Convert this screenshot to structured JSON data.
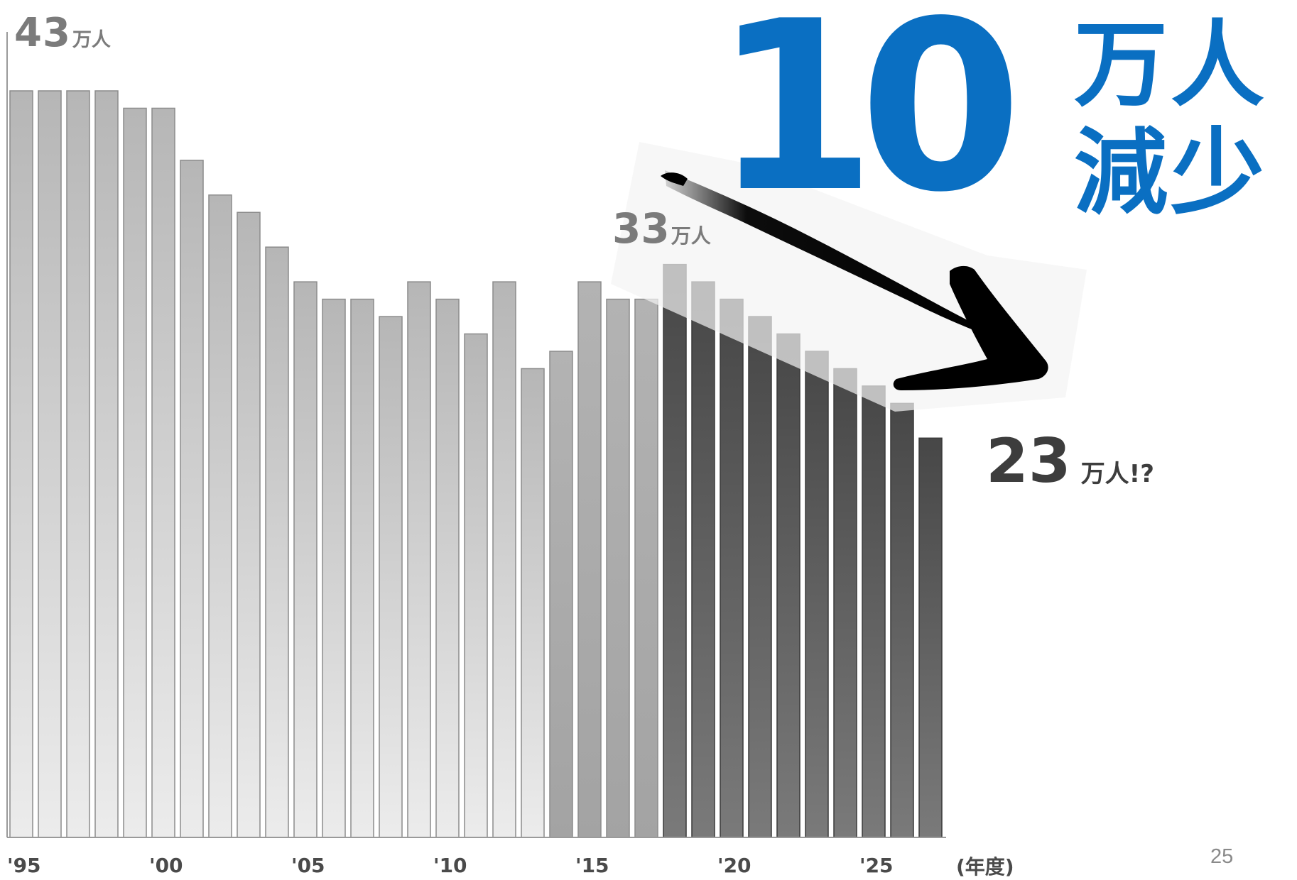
{
  "chart_data": {
    "type": "bar",
    "categories": [
      "'95",
      "'96",
      "'97",
      "'98",
      "'99",
      "'00",
      "'01",
      "'02",
      "'03",
      "'04",
      "'05",
      "'06",
      "'07",
      "'08",
      "'09",
      "'10",
      "'11",
      "'12",
      "'13",
      "'14",
      "'15",
      "'16",
      "'17",
      "'18",
      "'19",
      "'20",
      "'21",
      "'22",
      "'23",
      "'24",
      "'25",
      "'26",
      "'27"
    ],
    "values": [
      43,
      43,
      43,
      43,
      42,
      42,
      39,
      37,
      36,
      34,
      32,
      31,
      31,
      30,
      32,
      31,
      29,
      32,
      27,
      28,
      32,
      31,
      31,
      33,
      32,
      31,
      30,
      29,
      28,
      27,
      26,
      25,
      23
    ],
    "tick_labels": [
      "'95",
      "'00",
      "'05",
      "'10",
      "'15",
      "'20",
      "'25"
    ],
    "xlabel": "(年度)",
    "ylim": [
      0,
      43
    ],
    "y_axis_label": {
      "value": "43",
      "unit": "万人"
    },
    "annotations": {
      "start": {
        "value": "33",
        "unit": "万人"
      },
      "end": {
        "value": "23",
        "unit": "万人!?"
      },
      "headline_number": "10",
      "headline_text": "万人減少"
    },
    "colors": {
      "past_bars": "#c8c8c8",
      "projected_bars": "#5e5e5e",
      "headline": "#0a6fc2"
    }
  },
  "page_number": "25"
}
